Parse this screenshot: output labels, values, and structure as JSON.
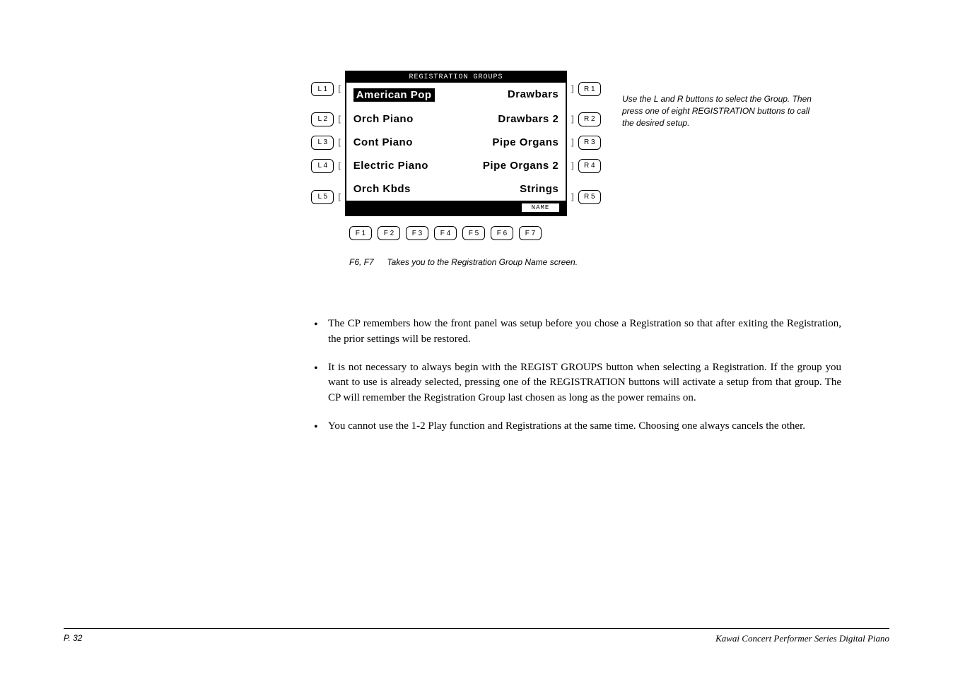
{
  "lcd": {
    "header": "REGISTRATION GROUPS",
    "rows": [
      {
        "lbtn": "L 1",
        "left": "American Pop",
        "right": "Drawbars",
        "rbtn": "R 1"
      },
      {
        "lbtn": "L 2",
        "left": "Orch Piano",
        "right": "Drawbars 2",
        "rbtn": "R 2"
      },
      {
        "lbtn": "L 3",
        "left": "Cont Piano",
        "right": "Pipe Organs",
        "rbtn": "R 3"
      },
      {
        "lbtn": "L 4",
        "left": "Electric Piano",
        "right": "Pipe Organs 2",
        "rbtn": "R 4"
      },
      {
        "lbtn": "L 5",
        "left": "Orch Kbds",
        "right": "Strings",
        "rbtn": "R 5"
      }
    ],
    "name_label": "NAME",
    "fbtns": [
      "F 1",
      "F 2",
      "F 3",
      "F 4",
      "F 5",
      "F 6",
      "F 7"
    ]
  },
  "caption_f": {
    "keys": "F6, F7",
    "text": "Takes you to the Registration Group Name screen."
  },
  "side_note": "Use the L and R buttons to select the Group. Then press one of eight REGISTRATION buttons to call the desired setup.",
  "bullets": [
    "The CP remembers how the front panel was setup before you chose a Registration so that after exiting the Registration, the prior settings will be restored.",
    "It is not necessary to always begin with the REGIST GROUPS button when selecting a Registration. If the group you want to use is already selected, pressing one of the REGISTRATION buttons will activate a setup from that group.  The CP will remember the Registration Group last chosen as long as the power remains on.",
    "You cannot use the 1-2 Play function and Registrations at the same time.  Choosing one always cancels the other."
  ],
  "footer": {
    "page": "P. 32",
    "brand": "Kawai Concert Performer Series Digital Piano"
  }
}
